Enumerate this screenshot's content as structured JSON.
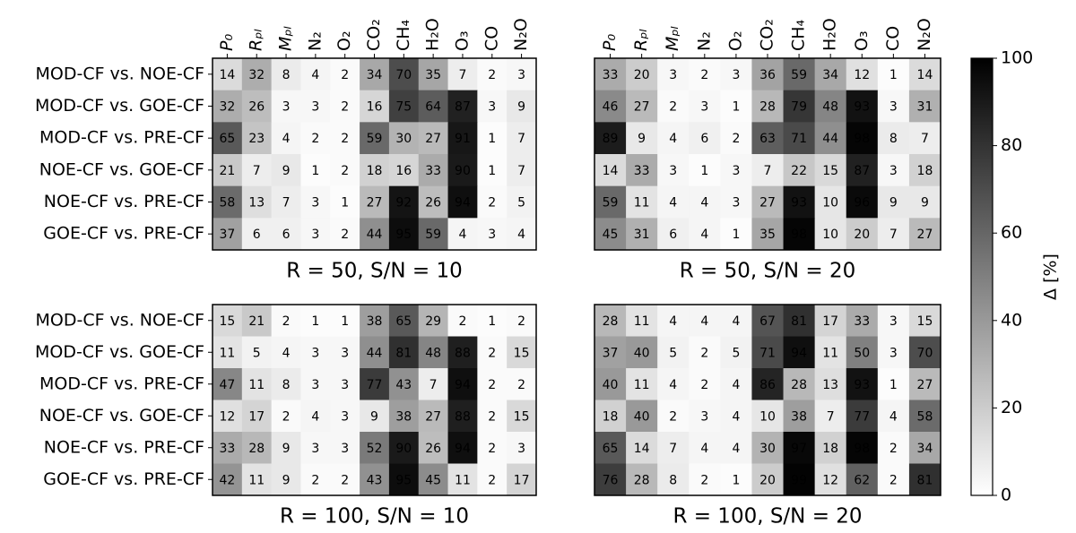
{
  "chart_data": [
    {
      "type": "heatmap",
      "title": "R = 50, S/N = 10",
      "x_categories": [
        "P₀",
        "Rₚₗ",
        "Mₚₗ",
        "N₂",
        "O₂",
        "CO₂",
        "CH₄",
        "H₂O",
        "O₃",
        "CO",
        "N₂O"
      ],
      "y_categories": [
        "MOD-CF vs. NOE-CF",
        "MOD-CF vs. GOE-CF",
        "MOD-CF vs. PRE-CF",
        "NOE-CF vs. GOE-CF",
        "NOE-CF vs. PRE-CF",
        "GOE-CF vs. PRE-CF"
      ],
      "values": [
        [
          14,
          32,
          8,
          4,
          2,
          34,
          70,
          35,
          7,
          2,
          3
        ],
        [
          32,
          26,
          3,
          3,
          2,
          16,
          75,
          64,
          87,
          3,
          9
        ],
        [
          65,
          23,
          4,
          2,
          2,
          59,
          30,
          27,
          91,
          1,
          7
        ],
        [
          21,
          7,
          9,
          1,
          2,
          18,
          16,
          33,
          90,
          1,
          7
        ],
        [
          58,
          13,
          7,
          3,
          1,
          27,
          92,
          26,
          94,
          2,
          5
        ],
        [
          37,
          6,
          6,
          3,
          2,
          44,
          95,
          59,
          4,
          3,
          4
        ]
      ]
    },
    {
      "type": "heatmap",
      "title": "R = 50, S/N = 20",
      "x_categories": [
        "P₀",
        "Rₚₗ",
        "Mₚₗ",
        "N₂",
        "O₂",
        "CO₂",
        "CH₄",
        "H₂O",
        "O₃",
        "CO",
        "N₂O"
      ],
      "values": [
        [
          33,
          20,
          3,
          2,
          3,
          36,
          59,
          34,
          12,
          1,
          14
        ],
        [
          46,
          27,
          2,
          3,
          1,
          28,
          79,
          48,
          93,
          3,
          31
        ],
        [
          89,
          9,
          4,
          6,
          2,
          63,
          71,
          44,
          98,
          8,
          7
        ],
        [
          14,
          33,
          3,
          1,
          3,
          7,
          22,
          15,
          87,
          3,
          18
        ],
        [
          59,
          11,
          4,
          4,
          3,
          27,
          93,
          10,
          96,
          9,
          9
        ],
        [
          45,
          31,
          6,
          4,
          1,
          35,
          98,
          10,
          20,
          7,
          27
        ]
      ]
    },
    {
      "type": "heatmap",
      "title": "R = 100, S/N = 10",
      "y_categories": [
        "MOD-CF vs. NOE-CF",
        "MOD-CF vs. GOE-CF",
        "MOD-CF vs. PRE-CF",
        "NOE-CF vs. GOE-CF",
        "NOE-CF vs. PRE-CF",
        "GOE-CF vs. PRE-CF"
      ],
      "values": [
        [
          15,
          21,
          2,
          1,
          1,
          38,
          65,
          29,
          2,
          1,
          2
        ],
        [
          11,
          5,
          4,
          3,
          3,
          44,
          81,
          48,
          88,
          2,
          15
        ],
        [
          47,
          11,
          8,
          3,
          3,
          77,
          43,
          7,
          94,
          2,
          2
        ],
        [
          12,
          17,
          2,
          4,
          3,
          9,
          38,
          27,
          88,
          2,
          15
        ],
        [
          33,
          28,
          9,
          3,
          3,
          52,
          90,
          26,
          94,
          2,
          3
        ],
        [
          42,
          11,
          9,
          2,
          2,
          43,
          95,
          45,
          11,
          2,
          17
        ]
      ]
    },
    {
      "type": "heatmap",
      "title": "R = 100, S/N = 20",
      "values": [
        [
          28,
          11,
          4,
          4,
          4,
          67,
          81,
          17,
          33,
          3,
          15
        ],
        [
          37,
          40,
          5,
          2,
          5,
          71,
          94,
          11,
          50,
          3,
          70
        ],
        [
          40,
          11,
          4,
          2,
          4,
          86,
          28,
          13,
          93,
          1,
          27
        ],
        [
          18,
          40,
          2,
          3,
          4,
          10,
          38,
          7,
          77,
          4,
          58
        ],
        [
          65,
          14,
          7,
          4,
          4,
          30,
          97,
          18,
          98,
          2,
          34
        ],
        [
          76,
          28,
          8,
          2,
          1,
          20,
          99,
          12,
          62,
          2,
          81
        ]
      ]
    },
    {
      "type": "colorbar",
      "label": "Δ [%]",
      "ylim": [
        0,
        100
      ],
      "yticks": [
        0,
        20,
        40,
        60,
        80,
        100
      ],
      "colors": [
        "#ffffff",
        "#000000"
      ]
    }
  ]
}
